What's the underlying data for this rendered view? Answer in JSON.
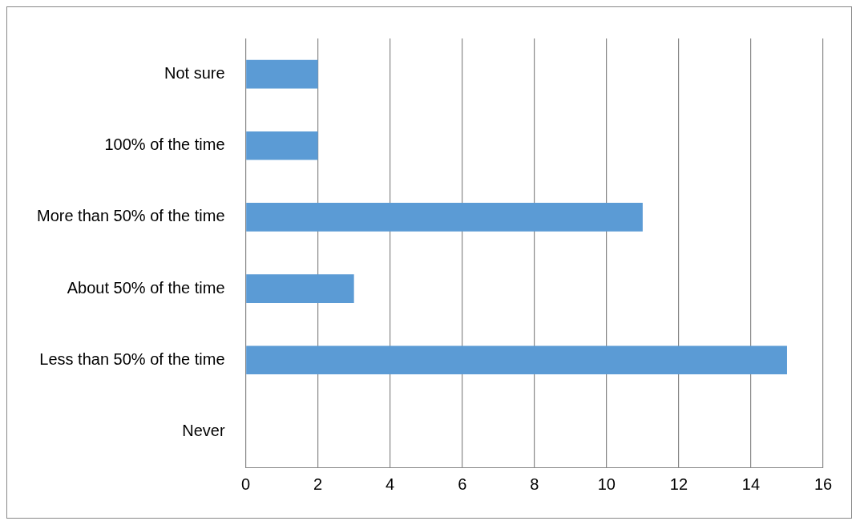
{
  "chart_data": {
    "type": "bar",
    "orientation": "horizontal",
    "categories": [
      "Not sure",
      "100% of the time",
      "More than 50% of the time",
      "About 50% of the time",
      "Less than 50% of the time",
      "Never"
    ],
    "values": [
      2,
      2,
      11,
      3,
      15,
      0
    ],
    "color": "#5b9bd5",
    "xlim": [
      0,
      16
    ],
    "xticks": [
      0,
      2,
      4,
      6,
      8,
      10,
      12,
      14,
      16
    ],
    "grid": "x"
  }
}
